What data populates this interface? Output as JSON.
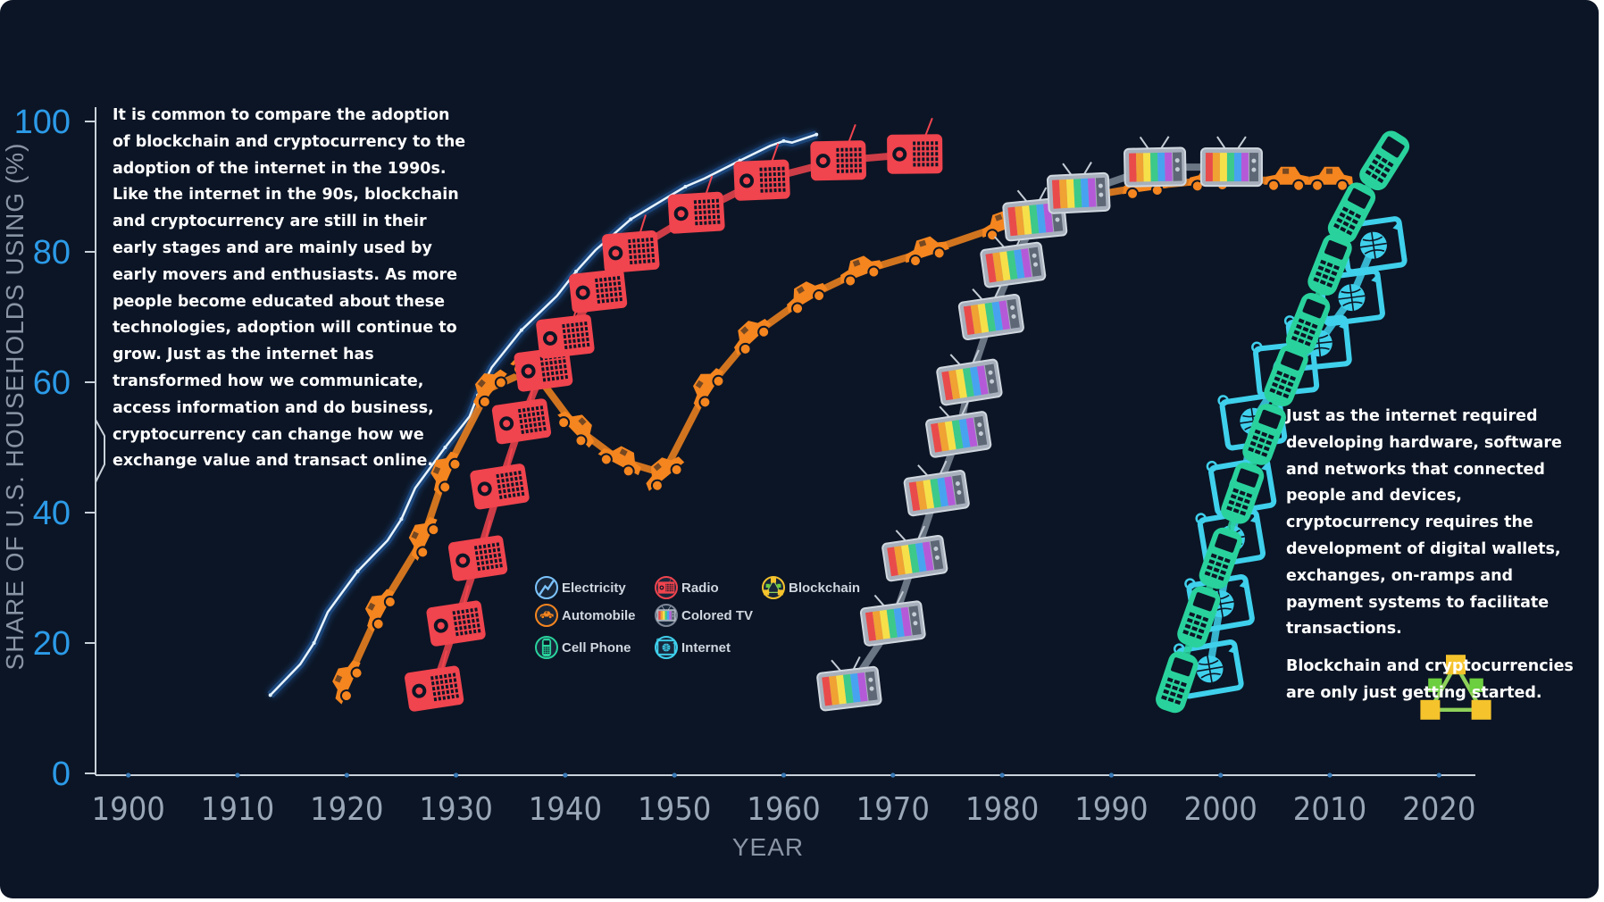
{
  "chart_data": {
    "type": "line",
    "xlabel": "YEAR",
    "ylabel": "SHARE OF U.S. HOUSEHOLDS USING (%)",
    "xlim": [
      1897,
      2023
    ],
    "ylim": [
      0,
      100
    ],
    "x_ticks": [
      1900,
      1910,
      1920,
      1930,
      1940,
      1950,
      1960,
      1970,
      1980,
      1990,
      2000,
      2010,
      2020
    ],
    "y_ticks": [
      0,
      20,
      40,
      60,
      80,
      100
    ],
    "legend_position": "center",
    "series": [
      {
        "name": "Electricity",
        "icon": "lightning-icon",
        "color": "#7cc4ff",
        "x": [
          1913,
          1917,
          1921,
          1925,
          1929,
          1932,
          1936,
          1941,
          1946,
          1951,
          1956,
          1960,
          1963
        ],
        "y": [
          12,
          20,
          31,
          39,
          50,
          58,
          68,
          77,
          85,
          90,
          94,
          97,
          98
        ]
      },
      {
        "name": "Automobile",
        "icon": "car-icon",
        "color": "#f4851f",
        "x": [
          1920,
          1923,
          1927,
          1929,
          1933,
          1937,
          1941,
          1945,
          1949,
          1953,
          1957,
          1962,
          1967,
          1973,
          1980,
          1986,
          1993,
          1999,
          2006,
          2010
        ],
        "y": [
          14,
          25,
          36,
          46,
          59,
          62,
          53,
          48,
          46,
          59,
          67,
          73,
          77,
          80,
          84,
          88,
          90,
          91,
          91,
          91
        ]
      },
      {
        "name": "Radio",
        "icon": "radio-icon",
        "color": "#f0444e",
        "x": [
          1928,
          1930,
          1932,
          1934,
          1936,
          1938,
          1940,
          1943,
          1946,
          1952,
          1958,
          1965,
          1972
        ],
        "y": [
          13,
          23,
          33,
          44,
          54,
          62,
          67,
          74,
          80,
          86,
          91,
          94,
          95
        ]
      },
      {
        "name": "Colored TV",
        "icon": "tv-icon",
        "color": "#7d8796",
        "x": [
          1966,
          1970,
          1972,
          1974,
          1976,
          1977,
          1979,
          1981,
          1983,
          1987,
          1994,
          2001
        ],
        "y": [
          13,
          23,
          33,
          43,
          52,
          60,
          70,
          78,
          85,
          89,
          93,
          93
        ]
      },
      {
        "name": "Internet",
        "icon": "internet-icon",
        "color": "#3fd0ec",
        "x": [
          1999,
          2000,
          2001,
          2002,
          2003,
          2006,
          2009,
          2012,
          2014
        ],
        "y": [
          16,
          26,
          36,
          44,
          54,
          62,
          66,
          73,
          81
        ]
      },
      {
        "name": "Cell Phone",
        "icon": "cell-phone-icon",
        "color": "#29d29c",
        "x": [
          1996,
          1998,
          2000,
          2002,
          2004,
          2006,
          2008,
          2010,
          2012,
          2015
        ],
        "y": [
          14,
          24,
          33,
          43,
          52,
          61,
          69,
          78,
          86,
          94
        ]
      },
      {
        "name": "Blockchain",
        "icon": "blockchain-icon",
        "color": "#f5c32c",
        "x": [],
        "y": []
      }
    ]
  },
  "annotations": {
    "left": "It is common to compare the adoption of blockchain and cryptocurrency to the adoption of the internet in the 1990s. Like the internet in the 90s, blockchain and cryptocurrency are still in their early stages and are mainly used by early movers and enthusiasts. As more people become educated about these technologies, adoption will continue to grow. Just as the internet has transformed how we communicate, access information and do business, cryptocurrency can change how we exchange value and transact online.",
    "right_1": "Just as the internet required developing hardware, software and networks that connected people and devices, cryptocurrency requires the development of digital wallets, exchanges, on-ramps and payment systems to facilitate transactions.",
    "right_2": "Blockchain and cryptocurrencies are only just getting started."
  },
  "colors": {
    "background": "#0c1525",
    "axis_numbers": "#2c9be8",
    "axis_lines": "#c9d1da"
  }
}
